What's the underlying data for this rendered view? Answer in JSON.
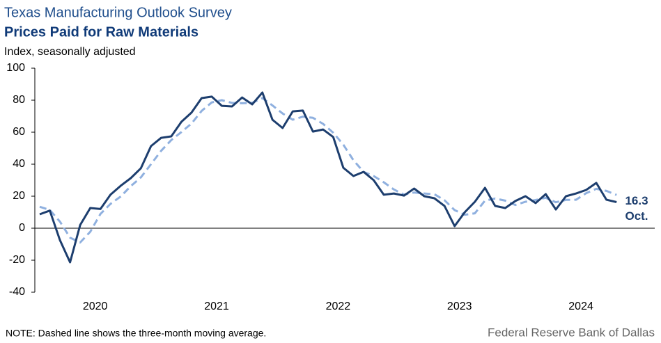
{
  "chart_data": {
    "type": "line",
    "title": "Texas Manufacturing Outlook Survey",
    "subtitle": "Prices Paid for Raw Materials",
    "y_label": "Index, seasonally adjusted",
    "note": "NOTE: Dashed line shows the three-month  moving average.",
    "source": "Federal Reserve Bank of Dallas",
    "categories": [
      null,
      null,
      null,
      null,
      null,
      "2020",
      null,
      null,
      null,
      null,
      null,
      null,
      null,
      null,
      null,
      null,
      null,
      "2021",
      null,
      null,
      null,
      null,
      null,
      null,
      null,
      null,
      null,
      null,
      null,
      "2022",
      null,
      null,
      null,
      null,
      null,
      null,
      null,
      null,
      null,
      null,
      null,
      "2023",
      null,
      null,
      null,
      null,
      null,
      null,
      null,
      null,
      null,
      null,
      null,
      "2024",
      null,
      null,
      null,
      null
    ],
    "series": [
      {
        "name": "Index",
        "color": "#1d3e6e",
        "dashed": false,
        "values": [
          8.7,
          11,
          -7.5,
          -21.3,
          2,
          12.6,
          12,
          21,
          26.5,
          31.3,
          37.5,
          51.3,
          56.5,
          57.4,
          66.5,
          72.2,
          81.3,
          82.2,
          76.5,
          76.1,
          81.7,
          77.4,
          84.8,
          67.8,
          62.6,
          73,
          73.5,
          60.4,
          61.7,
          57,
          37.8,
          32.6,
          35.2,
          30,
          20.9,
          21.7,
          20.4,
          24.8,
          20,
          18.7,
          13.9,
          1.3,
          10,
          16.5,
          25.2,
          13.9,
          12.6,
          17,
          20,
          15.7,
          21.3,
          11.7,
          20,
          21.7,
          23.9,
          28.3,
          17.8,
          16.3
        ]
      },
      {
        "name": "Three-month moving average",
        "color": "#8fb0df",
        "dashed": true,
        "values": [
          13.4,
          11.4,
          4.1,
          -5.9,
          -8.9,
          -2.2,
          8.9,
          15.2,
          19.8,
          26.3,
          31.8,
          40,
          48.4,
          55.1,
          60.1,
          65.4,
          73.3,
          78.6,
          80,
          78.3,
          78.1,
          78.4,
          81.3,
          76.7,
          71.7,
          67.8,
          69.7,
          69,
          65.2,
          59.7,
          52.2,
          42.5,
          35.2,
          32.6,
          28.7,
          24.2,
          21,
          22.3,
          21.7,
          21.2,
          17.5,
          11.3,
          8.4,
          9.3,
          17.2,
          18.5,
          17.2,
          14.5,
          16.5,
          17.6,
          19,
          16.2,
          17.7,
          17.8,
          21.9,
          24.6,
          23.3,
          20.8
        ]
      }
    ],
    "annotations": [
      {
        "text": "16.3"
      },
      {
        "text": "Oct."
      }
    ],
    "ylim": [
      -40,
      100
    ],
    "yticks": [
      -40,
      -20,
      0,
      20,
      40,
      60,
      80,
      100
    ]
  }
}
